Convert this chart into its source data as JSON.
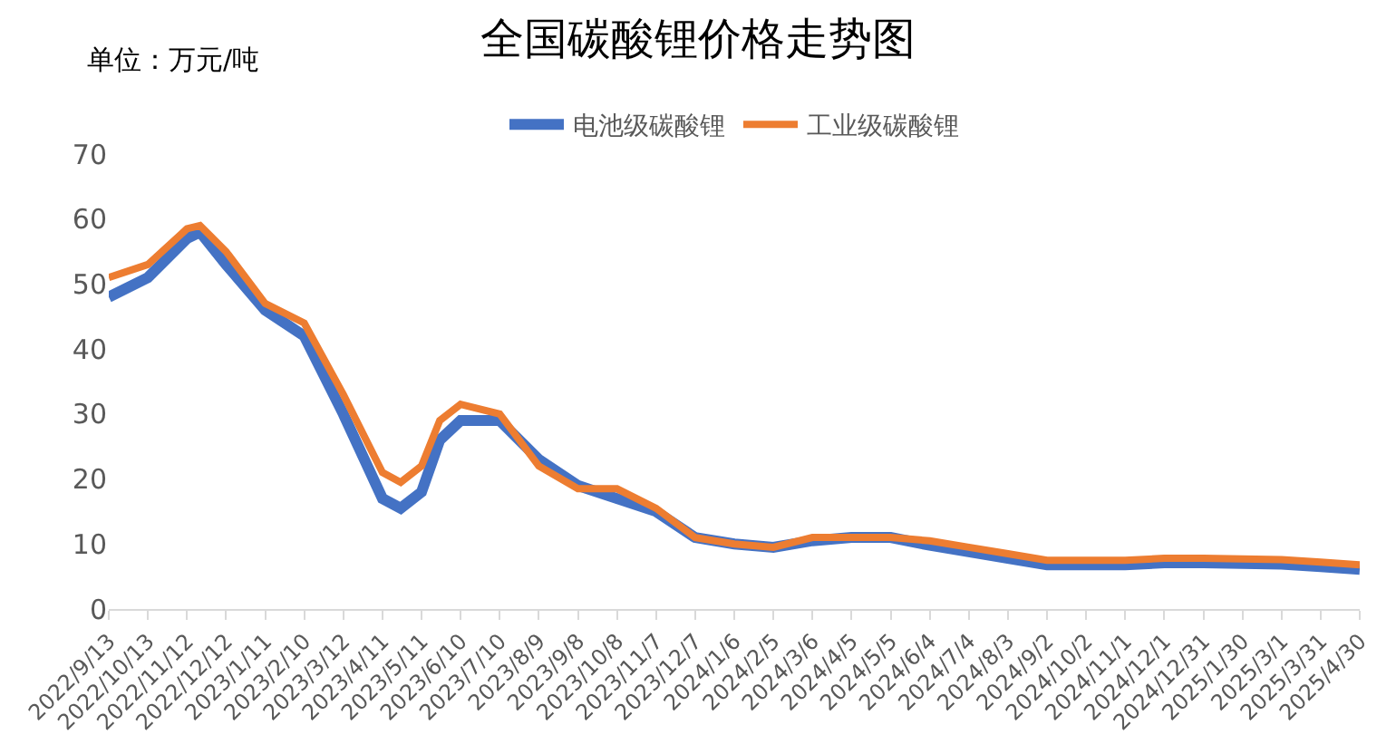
{
  "chart_data": {
    "type": "line",
    "title": "全国碳酸锂价格走势图",
    "annotations": [
      "单位：万元/吨"
    ],
    "x": [
      "2022-09-13",
      "2022-10-13",
      "2022-11-12",
      "2022-11-22",
      "2022-12-12",
      "2023-01-11",
      "2023-02-10",
      "2023-03-12",
      "2023-04-11",
      "2023-04-25",
      "2023-05-11",
      "2023-05-25",
      "2023-06-10",
      "2023-07-10",
      "2023-08-09",
      "2023-09-08",
      "2023-10-08",
      "2023-11-07",
      "2023-12-07",
      "2024-01-06",
      "2024-02-05",
      "2024-03-06",
      "2024-04-05",
      "2024-05-05",
      "2024-06-04",
      "2024-07-04",
      "2024-08-03",
      "2024-09-02",
      "2024-10-02",
      "2024-11-01",
      "2024-12-01",
      "2024-12-31",
      "2025-01-30",
      "2025-03-01",
      "2025-03-31",
      "2025-04-30"
    ],
    "series": [
      {
        "name": "电池级碳酸锂",
        "color": "#4472c4",
        "values": [
          48,
          51,
          57,
          58,
          53,
          46,
          42,
          30,
          17,
          15.5,
          18,
          26,
          29,
          29,
          23,
          19,
          17,
          15,
          11,
          10,
          9.5,
          10.5,
          11,
          11,
          9.8,
          8.8,
          7.8,
          6.8,
          6.8,
          6.8,
          7.1,
          7.1,
          7,
          6.9,
          6.5,
          6.1
        ]
      },
      {
        "name": "工业级碳酸锂",
        "color": "#ed7d31",
        "values": [
          51,
          53,
          58.5,
          59,
          55,
          47,
          44,
          33,
          21,
          19.5,
          22,
          29,
          31.5,
          30,
          22,
          18.5,
          18.5,
          15.5,
          11,
          10,
          9.5,
          11,
          11,
          11,
          10.5,
          9.5,
          8.5,
          7.5,
          7.5,
          7.5,
          7.8,
          7.8,
          7.7,
          7.6,
          7.2,
          6.8
        ]
      }
    ],
    "xlim": [
      "2022-09-13",
      "2025-04-30"
    ],
    "xticks": [
      {
        "value": "2022-09-13",
        "label": "2022/9/13"
      },
      {
        "value": "2022-10-13",
        "label": "2022/10/13"
      },
      {
        "value": "2022-11-12",
        "label": "2022/11/12"
      },
      {
        "value": "2022-12-12",
        "label": "2022/12/12"
      },
      {
        "value": "2023-01-11",
        "label": "2023/1/11"
      },
      {
        "value": "2023-02-10",
        "label": "2023/2/10"
      },
      {
        "value": "2023-03-12",
        "label": "2023/3/12"
      },
      {
        "value": "2023-04-11",
        "label": "2023/4/11"
      },
      {
        "value": "2023-05-11",
        "label": "2023/5/11"
      },
      {
        "value": "2023-06-10",
        "label": "2023/6/10"
      },
      {
        "value": "2023-07-10",
        "label": "2023/7/10"
      },
      {
        "value": "2023-08-09",
        "label": "2023/8/9"
      },
      {
        "value": "2023-09-08",
        "label": "2023/9/8"
      },
      {
        "value": "2023-10-08",
        "label": "2023/10/8"
      },
      {
        "value": "2023-11-07",
        "label": "2023/11/7"
      },
      {
        "value": "2023-12-07",
        "label": "2023/12/7"
      },
      {
        "value": "2024-01-06",
        "label": "2024/1/6"
      },
      {
        "value": "2024-02-05",
        "label": "2024/2/5"
      },
      {
        "value": "2024-03-06",
        "label": "2024/3/6"
      },
      {
        "value": "2024-04-05",
        "label": "2024/4/5"
      },
      {
        "value": "2024-05-05",
        "label": "2024/5/5"
      },
      {
        "value": "2024-06-04",
        "label": "2024/6/4"
      },
      {
        "value": "2024-07-04",
        "label": "2024/7/4"
      },
      {
        "value": "2024-08-03",
        "label": "2024/8/3"
      },
      {
        "value": "2024-09-02",
        "label": "2024/9/2"
      },
      {
        "value": "2024-10-02",
        "label": "2024/10/2"
      },
      {
        "value": "2024-11-01",
        "label": "2024/11/1"
      },
      {
        "value": "2024-12-01",
        "label": "2024/12/1"
      },
      {
        "value": "2024-12-31",
        "label": "2024/12/31"
      },
      {
        "value": "2025-01-30",
        "label": "2025/1/30"
      },
      {
        "value": "2025-03-01",
        "label": "2025/3/1"
      },
      {
        "value": "2025-03-31",
        "label": "2025/3/31"
      },
      {
        "value": "2025-04-30",
        "label": "2025/4/30"
      }
    ],
    "ylim": [
      0,
      70
    ],
    "yticks": [
      0,
      10,
      20,
      30,
      40,
      50,
      60,
      70
    ],
    "grid": false,
    "legend": "top",
    "marker": "none",
    "line_style": "solid"
  }
}
